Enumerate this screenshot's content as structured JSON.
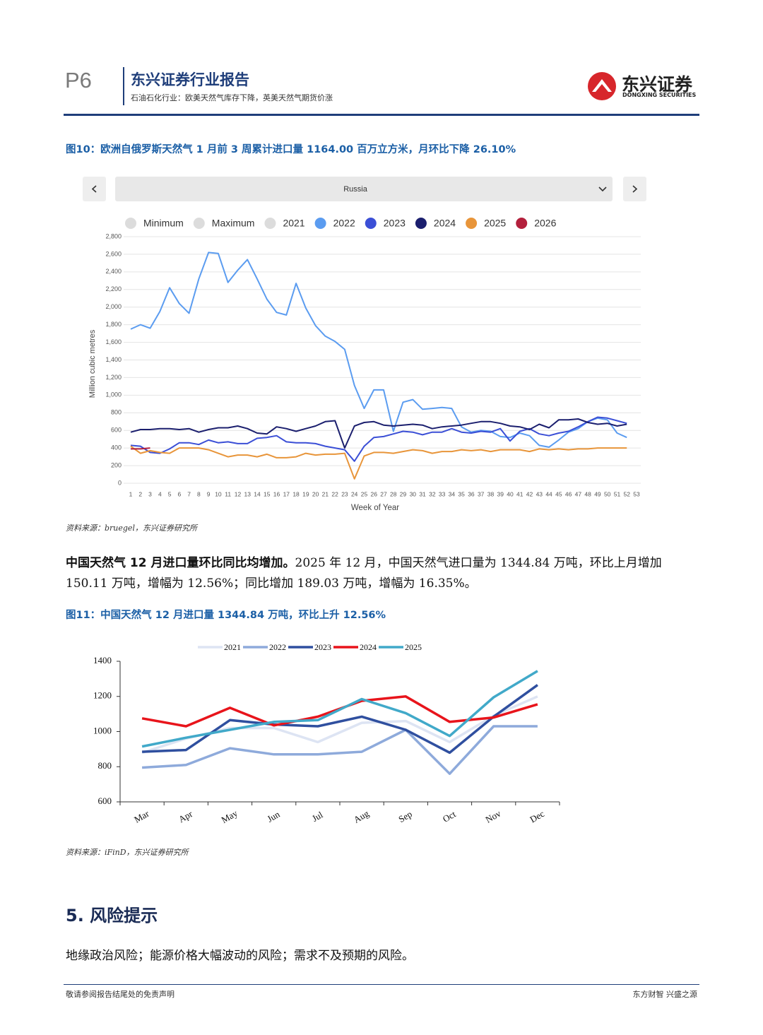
{
  "header": {
    "page": "P6",
    "title": "东兴证券行业报告",
    "subtitle": "石油石化行业：欧美天然气库存下降，英美天然气期货价涨",
    "logo_cn": "东兴证券",
    "logo_en": "DONGXING SECURITIES"
  },
  "figures": [
    {
      "caption": "图10：欧洲自俄罗斯天然气 1 月前 3 周累计进口量 1164.00 百万立方米，月环比下降 26.10%",
      "source": "资料来源：bruegel，东兴证券研究所"
    },
    {
      "caption": "图11：中国天然气 12 月进口量 1344.84 万吨，环比上升 12.56%",
      "source": "资料来源：iFinD，东兴证券研究所"
    }
  ],
  "paragraph": {
    "lead": "中国天然气 12 月进口量环比同比均增加。",
    "text": "2025 年 12 月，中国天然气进口量为 1344.84 万吨，环比上月增加 150.11 万吨，增幅为 12.56%；同比增加 189.03 万吨，增幅为 16.35%。"
  },
  "section": {
    "heading": "5. 风险提示",
    "text": "地缘政治风险；能源价格大幅波动的风险；需求不及预期的风险。"
  },
  "footer": {
    "left": "敬请参阅报告结尾处的免责声明",
    "right": "东方财智 兴盛之源"
  },
  "chart_data": [
    {
      "type": "line",
      "selector": "Russia",
      "y_label": "Million cubic metres",
      "x_label": "Week of Year",
      "categories": [
        "1",
        "2",
        "3",
        "4",
        "5",
        "6",
        "7",
        "8",
        "9",
        "10",
        "11",
        "12",
        "13",
        "14",
        "15",
        "16",
        "17",
        "18",
        "19",
        "20",
        "21",
        "22",
        "23",
        "24",
        "25",
        "26",
        "27",
        "28",
        "29",
        "30",
        "31",
        "32",
        "33",
        "34",
        "35",
        "36",
        "37",
        "38",
        "39",
        "40",
        "41",
        "42",
        "43",
        "44",
        "45",
        "46",
        "47",
        "48",
        "49",
        "50",
        "51",
        "52",
        "53"
      ],
      "legend_inactive": [
        "Minimum",
        "Maximum",
        "2021"
      ],
      "series": [
        {
          "name": "2022",
          "color": "#5b9cf0",
          "values": [
            1750,
            1800,
            1760,
            1950,
            2220,
            2040,
            1930,
            2320,
            2620,
            2610,
            2280,
            2420,
            2540,
            2320,
            2090,
            1940,
            1910,
            2270,
            1990,
            1790,
            1670,
            1610,
            1520,
            1110,
            850,
            1060,
            1060,
            590,
            920,
            950,
            840,
            850,
            860,
            850,
            640,
            580,
            600,
            590,
            530,
            520,
            570,
            540,
            430,
            410,
            490,
            580,
            620,
            700,
            740,
            720,
            570,
            520,
            null
          ]
        },
        {
          "name": "2023",
          "color": "#3b4fd6",
          "values": [
            430,
            420,
            350,
            340,
            390,
            460,
            460,
            440,
            490,
            460,
            470,
            450,
            450,
            510,
            520,
            540,
            470,
            460,
            460,
            450,
            420,
            400,
            380,
            250,
            420,
            520,
            530,
            560,
            590,
            580,
            550,
            580,
            580,
            620,
            580,
            570,
            590,
            580,
            620,
            480,
            590,
            620,
            560,
            540,
            570,
            590,
            640,
            700,
            750,
            740,
            710,
            680,
            null
          ]
        },
        {
          "name": "2024",
          "color": "#1b1f6e",
          "values": [
            580,
            610,
            610,
            620,
            620,
            610,
            620,
            580,
            610,
            630,
            630,
            650,
            620,
            570,
            560,
            640,
            620,
            590,
            620,
            650,
            700,
            710,
            400,
            650,
            690,
            700,
            660,
            650,
            660,
            670,
            660,
            620,
            640,
            650,
            660,
            680,
            700,
            700,
            680,
            650,
            640,
            610,
            670,
            630,
            720,
            720,
            730,
            690,
            670,
            680,
            650,
            670,
            null
          ]
        },
        {
          "name": "2025",
          "color": "#e8953a",
          "values": [
            420,
            340,
            370,
            350,
            340,
            400,
            400,
            400,
            380,
            340,
            300,
            320,
            320,
            300,
            330,
            290,
            290,
            300,
            340,
            320,
            330,
            330,
            340,
            50,
            310,
            350,
            350,
            340,
            360,
            380,
            370,
            340,
            360,
            360,
            380,
            370,
            380,
            360,
            380,
            380,
            380,
            360,
            390,
            380,
            390,
            380,
            390,
            390,
            400,
            400,
            400,
            400,
            null
          ]
        },
        {
          "name": "2026",
          "color": "#b3203c",
          "values": [
            390,
            390,
            400,
            null,
            null,
            null,
            null,
            null,
            null,
            null,
            null,
            null,
            null,
            null,
            null,
            null,
            null,
            null,
            null,
            null,
            null,
            null,
            null,
            null,
            null,
            null,
            null,
            null,
            null,
            null,
            null,
            null,
            null,
            null,
            null,
            null,
            null,
            null,
            null,
            null,
            null,
            null,
            null,
            null,
            null,
            null,
            null,
            null,
            null,
            null,
            null,
            null,
            null
          ]
        }
      ],
      "ylim": [
        0,
        2800
      ],
      "yticks": [
        0,
        200,
        400,
        600,
        800,
        {
          "value": 1000,
          "label": "1,000"
        },
        {
          "value": 1200,
          "label": "1,200"
        },
        {
          "value": 1400,
          "label": "1,400"
        },
        {
          "value": 1600,
          "label": "1,600"
        },
        {
          "value": 1800,
          "label": "1,800"
        },
        {
          "value": 2000,
          "label": "2,000"
        },
        {
          "value": 2200,
          "label": "2,200"
        },
        {
          "value": 2400,
          "label": "2,400"
        },
        {
          "value": 2600,
          "label": "2,600"
        },
        {
          "value": 2800,
          "label": "2,800"
        }
      ],
      "grid": true
    },
    {
      "type": "line",
      "categories": [
        "Mar",
        "Apr",
        "May",
        "Jun",
        "Jul",
        "Aug",
        "Sep",
        "Oct",
        "Nov",
        "Dec"
      ],
      "series": [
        {
          "name": "2021",
          "color": "#dde4f3",
          "values": [
            880,
            960,
            1020,
            1020,
            940,
            1050,
            1060,
            940,
            1090,
            1200
          ]
        },
        {
          "name": "2022",
          "color": "#8eaadb",
          "values": [
            795,
            810,
            905,
            870,
            870,
            885,
            1010,
            760,
            1030,
            1030
          ]
        },
        {
          "name": "2023",
          "color": "#2f4f9f",
          "values": [
            885,
            895,
            1065,
            1040,
            1030,
            1085,
            1010,
            880,
            1085,
            1265
          ]
        },
        {
          "name": "2024",
          "color": "#e8141b",
          "values": [
            1075,
            1030,
            1135,
            1035,
            1085,
            1175,
            1200,
            1055,
            1080,
            1155
          ]
        },
        {
          "name": "2025",
          "color": "#41a9c9",
          "values": [
            915,
            965,
            1010,
            1055,
            1065,
            1185,
            1105,
            975,
            1195,
            1344.84
          ]
        }
      ],
      "ylim": [
        600,
        1400
      ],
      "yticks": [
        600,
        800,
        1000,
        1200,
        1400
      ],
      "grid": false
    }
  ]
}
